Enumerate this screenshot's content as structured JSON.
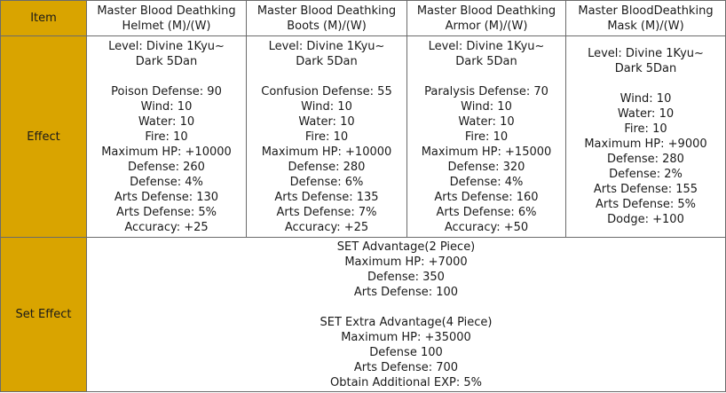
{
  "header": {
    "item_label": "Item",
    "columns": [
      {
        "line1": "Master Blood Deathking",
        "line2": "Helmet (M)/(W)"
      },
      {
        "line1": "Master Blood Deathking",
        "line2": "Boots (M)/(W)"
      },
      {
        "line1": "Master Blood Deathking",
        "line2": "Armor (M)/(W)"
      },
      {
        "line1": "Master BloodDeathking",
        "line2": "Mask (M)/(W)"
      }
    ]
  },
  "effect": {
    "label": "Effect",
    "columns": [
      {
        "level_1": "Level: Divine 1Kyu~",
        "level_2": "Dark 5Dan",
        "stats": [
          "Poison Defense: 90",
          "Wind: 10",
          "Water: 10",
          "Fire: 10",
          "Maximum HP: +10000",
          "Defense: 260",
          "Defense: 4%",
          "Arts Defense: 130",
          "Arts Defense: 5%",
          "Accuracy: +25"
        ]
      },
      {
        "level_1": "Level: Divine 1Kyu~",
        "level_2": "Dark 5Dan",
        "stats": [
          "Confusion Defense: 55",
          "Wind: 10",
          "Water: 10",
          "Fire: 10",
          "Maximum HP: +10000",
          "Defense: 280",
          "Defense: 6%",
          "Arts Defense: 135",
          "Arts Defense: 7%",
          "Accuracy: +25"
        ]
      },
      {
        "level_1": "Level: Divine 1Kyu~",
        "level_2": "Dark 5Dan",
        "stats": [
          "Paralysis Defense: 70",
          "Wind: 10",
          "Water: 10",
          "Fire: 10",
          "Maximum HP: +15000",
          "Defense: 320",
          "Defense: 4%",
          "Arts Defense: 160",
          "Arts Defense: 6%",
          "Accuracy: +50"
        ]
      },
      {
        "level_1": "Level: Divine 1Kyu~",
        "level_2": "Dark 5Dan",
        "stats": [
          "Wind: 10",
          "Water: 10",
          "Fire: 10",
          "Maximum HP: +9000",
          "Defense: 280",
          "Defense: 2%",
          "Arts Defense: 155",
          "Arts Defense: 5%",
          "Dodge: +100"
        ]
      }
    ]
  },
  "set_effect": {
    "label": "Set Effect",
    "advantage_title": "SET Advantage(2 Piece)",
    "advantage_lines": [
      "Maximum HP: +7000",
      "Defense: 350",
      "Arts Defense: 100"
    ],
    "extra_title": "SET Extra Advantage(4 Piece)",
    "extra_lines": [
      "Maximum HP: +35000",
      "Defense 100",
      "Arts Defense: 700",
      "Obtain Additional EXP: 5%"
    ]
  }
}
